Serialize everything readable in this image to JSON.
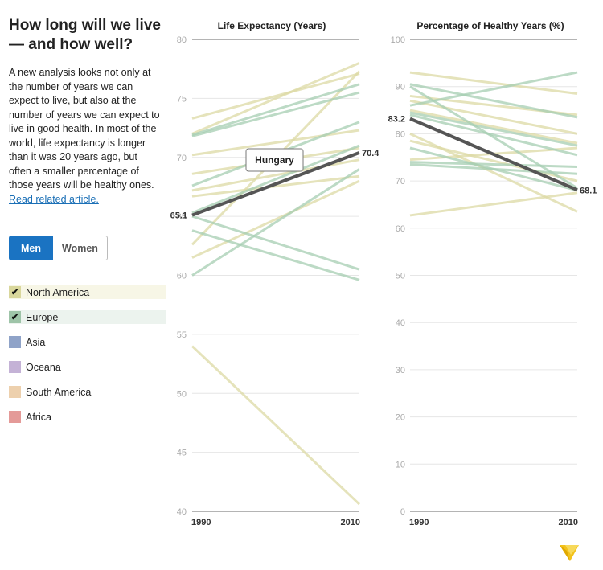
{
  "sidebar": {
    "headline": "How long will we live — and how well?",
    "intro": "A new analysis looks not only at the number of years we can expect to live, but also at the number of years we can expect to live in good health. In most of the world, life expectancy is longer than it was 20 years ago, but often a smaller percentage of those years will be healthy ones.",
    "link_text": "Read related article."
  },
  "toggle": {
    "men_label": "Men",
    "women_label": "Women",
    "selected": "Men"
  },
  "legend": {
    "items": [
      {
        "label": "North America",
        "color": "#d9d79c",
        "bg": "#f7f6e6",
        "checked": true,
        "check": "✔"
      },
      {
        "label": "Europe",
        "color": "#9ec4a8",
        "bg": "#ecf3ee",
        "checked": true,
        "check": "✔"
      },
      {
        "label": "Asia",
        "color": "#8fa3c8",
        "bg": "",
        "checked": false,
        "check": ""
      },
      {
        "label": "Oceana",
        "color": "#c4b2d6",
        "bg": "",
        "checked": false,
        "check": ""
      },
      {
        "label": "South America",
        "color": "#edd0ad",
        "bg": "",
        "checked": false,
        "check": ""
      },
      {
        "label": "Africa",
        "color": "#e49a98",
        "bg": "",
        "checked": false,
        "check": ""
      }
    ]
  },
  "tooltip": {
    "label": "Hungary"
  },
  "chart_data": [
    {
      "type": "line",
      "title": "Life Expectancy (Years)",
      "x": [
        "1990",
        "2010"
      ],
      "ylim": [
        40,
        80
      ],
      "yticks": [
        40,
        45,
        50,
        55,
        60,
        65,
        70,
        75,
        80
      ],
      "grid": true,
      "highlight": {
        "name": "Hungary",
        "values": [
          65.1,
          70.4
        ],
        "color": "#555555",
        "start_label": "65.1",
        "end_label": "70.4"
      },
      "north_america_color": "#dcdaa4",
      "europe_color": "#a6cdb1",
      "series": [
        {
          "region": "North America",
          "values": [
            73.3,
            77.1
          ]
        },
        {
          "region": "North America",
          "values": [
            72.0,
            78.0
          ]
        },
        {
          "region": "North America",
          "values": [
            70.2,
            72.3
          ]
        },
        {
          "region": "North America",
          "values": [
            68.6,
            70.8
          ]
        },
        {
          "region": "North America",
          "values": [
            67.2,
            69.8
          ]
        },
        {
          "region": "North America",
          "values": [
            66.7,
            68.4
          ]
        },
        {
          "region": "North America",
          "values": [
            62.6,
            77.3
          ]
        },
        {
          "region": "North America",
          "values": [
            61.5,
            68.0
          ]
        },
        {
          "region": "North America",
          "values": [
            54.0,
            40.6
          ]
        },
        {
          "region": "Europe",
          "values": [
            71.9,
            76.2
          ]
        },
        {
          "region": "Europe",
          "values": [
            71.8,
            75.5
          ]
        },
        {
          "region": "Europe",
          "values": [
            67.6,
            73.0
          ]
        },
        {
          "region": "Europe",
          "values": [
            65.3,
            71.0
          ]
        },
        {
          "region": "Europe",
          "values": [
            65.0,
            60.5
          ]
        },
        {
          "region": "Europe",
          "values": [
            63.8,
            59.6
          ]
        },
        {
          "region": "Europe",
          "values": [
            60.0,
            69.0
          ]
        }
      ]
    },
    {
      "type": "line",
      "title": "Percentage of Healthy Years (%)",
      "x": [
        "1990",
        "2010"
      ],
      "ylim": [
        0,
        100
      ],
      "yticks": [
        0,
        10,
        20,
        30,
        40,
        50,
        60,
        70,
        80,
        90,
        100
      ],
      "grid": true,
      "highlight": {
        "name": "Hungary",
        "values": [
          83.2,
          68.1
        ],
        "color": "#555555",
        "start_label": "83.2",
        "end_label": "68.1"
      },
      "north_america_color": "#dcdaa4",
      "europe_color": "#a6cdb1",
      "series": [
        {
          "region": "North America",
          "values": [
            93.0,
            88.5
          ]
        },
        {
          "region": "North America",
          "values": [
            88.0,
            84.0
          ]
        },
        {
          "region": "North America",
          "values": [
            87.0,
            80.0
          ]
        },
        {
          "region": "North America",
          "values": [
            85.0,
            78.0
          ]
        },
        {
          "region": "North America",
          "values": [
            80.0,
            63.5
          ]
        },
        {
          "region": "North America",
          "values": [
            78.5,
            70.0
          ]
        },
        {
          "region": "North America",
          "values": [
            74.5,
            77.0
          ]
        },
        {
          "region": "North America",
          "values": [
            62.7,
            67.5
          ]
        },
        {
          "region": "Europe",
          "values": [
            90.5,
            83.5
          ]
        },
        {
          "region": "Europe",
          "values": [
            90.0,
            68.5
          ]
        },
        {
          "region": "Europe",
          "values": [
            86.0,
            93.0
          ]
        },
        {
          "region": "Europe",
          "values": [
            84.5,
            77.5
          ]
        },
        {
          "region": "Europe",
          "values": [
            84.0,
            75.5
          ]
        },
        {
          "region": "Europe",
          "values": [
            77.0,
            68.0
          ]
        },
        {
          "region": "Europe",
          "values": [
            74.0,
            73.0
          ]
        },
        {
          "region": "Europe",
          "values": [
            73.5,
            71.5
          ]
        }
      ]
    }
  ]
}
